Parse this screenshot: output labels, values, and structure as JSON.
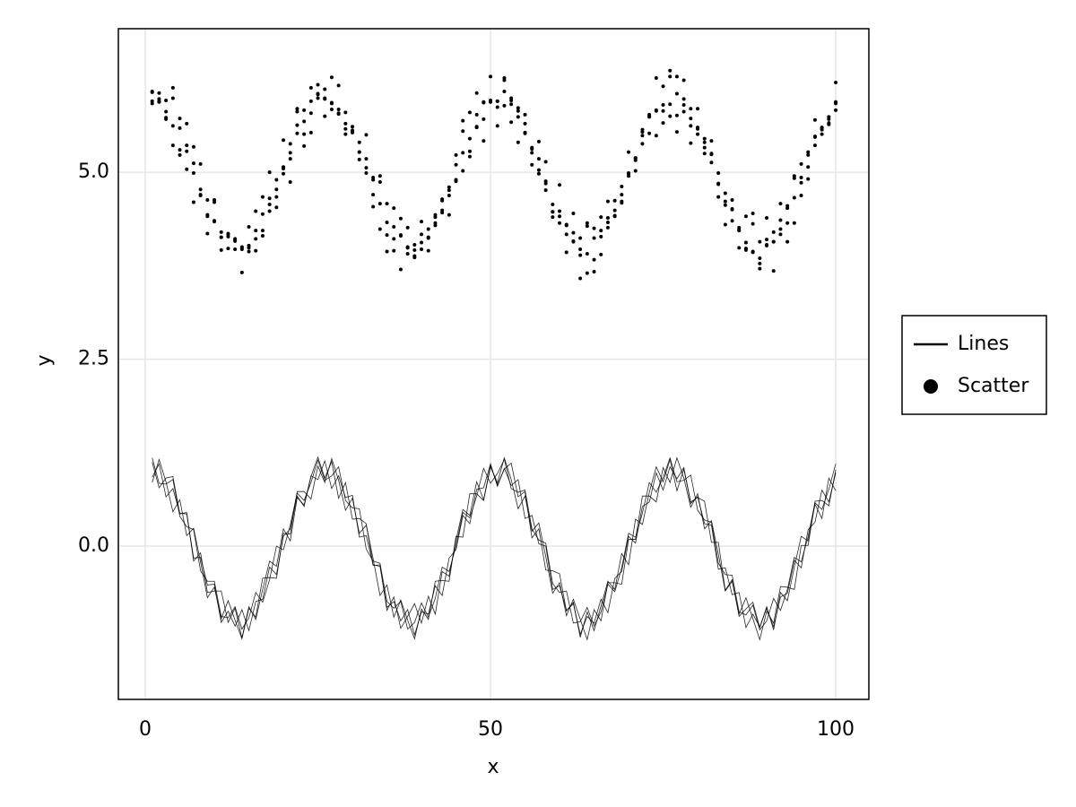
{
  "chart_data": {
    "type": "combo",
    "xlabel": "x",
    "ylabel": "y",
    "grid": true,
    "legend": "right",
    "xlim": [
      -3.9,
      104.8
    ],
    "ylim": [
      -2.05,
      6.92
    ],
    "xticks": [
      0,
      50,
      100
    ],
    "yticks": [
      {
        "value": 0,
        "label": "0.0"
      },
      {
        "value": 2.5,
        "label": "2.5"
      },
      {
        "value": 5,
        "label": "5.0"
      }
    ],
    "x": [
      1,
      2,
      3,
      4,
      5,
      6,
      7,
      8,
      9,
      10,
      11,
      12,
      13,
      14,
      15,
      16,
      17,
      18,
      19,
      20,
      21,
      22,
      23,
      24,
      25,
      26,
      27,
      28,
      29,
      30,
      31,
      32,
      33,
      34,
      35,
      36,
      37,
      38,
      39,
      40,
      41,
      42,
      43,
      44,
      45,
      46,
      47,
      48,
      49,
      50,
      51,
      52,
      53,
      54,
      55,
      56,
      57,
      58,
      59,
      60,
      61,
      62,
      63,
      64,
      65,
      66,
      67,
      68,
      69,
      70,
      71,
      72,
      73,
      74,
      75,
      76,
      77,
      78,
      79,
      80,
      81,
      82,
      83,
      84,
      85,
      86,
      87,
      88,
      89,
      90,
      91,
      92,
      93,
      94,
      95,
      96,
      97,
      98,
      99,
      100
    ],
    "series": [
      {
        "name": "Lines",
        "type": "line",
        "color": "#000000",
        "values": [
          [
            1.12,
            0.78,
            0.91,
            0.93,
            0.43,
            0.45,
            -0.2,
            -0.09,
            -0.62,
            -0.6,
            -0.6,
            -1.02,
            -0.83,
            -1.23,
            -0.81,
            -0.98,
            -0.58,
            -0.2,
            -0.27,
            0.23,
            0.07,
            0.65,
            0.55,
            0.93,
            1.19,
            0.91,
            1.13,
            0.64,
            0.85,
            0.36,
            0.37,
            0.3,
            -0.26,
            -0.25,
            -0.86,
            -0.68,
            -1.1,
            -0.94,
            -0.77,
            -1.03,
            -0.67,
            -0.91,
            -0.34,
            -0.4,
            0.08,
            0.49,
            0.41,
            0.86,
            0.62,
            1.08,
            0.82,
            1.03,
            1.11,
            0.66,
            0.73,
            0.11,
            0.23,
            -0.32,
            -0.33,
            -0.37,
            -0.87,
            -0.75,
            -1.22,
            -0.88,
            -1.13,
            -0.8,
            -0.47,
            -0.58,
            -0.1,
            -0.25,
            0.36,
            0.29,
            0.72,
            1.06,
            0.86,
            1.16,
            0.74,
            1.03,
            0.59,
            0.65,
            0.6,
            0.05,
            0.05,
            -0.59,
            -0.45,
            -0.94,
            -0.84,
            -0.75,
            -1.09,
            -0.81,
            -1.12,
            -0.62,
            -0.73,
            -0.28,
            0.13,
            0.07,
            0.56,
            0.37,
            0.91,
            0.74
          ],
          [
            0.85,
            1.16,
            0.86,
            0.46,
            0.62,
            0.14,
            0.24,
            -0.21,
            -0.69,
            -0.55,
            -0.97,
            -0.73,
            -0.99,
            -1.24,
            -0.83,
            -0.95,
            -0.43,
            -0.42,
            -0.43,
            0.17,
            0.16,
            0.73,
            0.73,
            0.63,
            1.07,
            0.85,
            1.17,
            0.88,
            0.48,
            0.64,
            0.17,
            0.28,
            -0.17,
            -0.66,
            -0.52,
            -0.95,
            -0.72,
            -0.99,
            -1.24,
            -0.84,
            -0.98,
            -0.47,
            -0.46,
            -0.47,
            0.13,
            0.12,
            0.7,
            0.7,
            0.61,
            1.06,
            0.85,
            1.18,
            0.89,
            0.5,
            0.67,
            0.2,
            0.31,
            -0.14,
            -0.63,
            -0.49,
            -0.93,
            -0.71,
            -0.98,
            -1.25,
            -0.85,
            -1.0,
            -0.49,
            -0.49,
            -0.51,
            0.09,
            0.09,
            0.67,
            0.67,
            0.59,
            1.05,
            0.85,
            1.18,
            0.91,
            0.52,
            0.7,
            0.23,
            0.34,
            -0.11,
            -0.6,
            -0.47,
            -0.91,
            -0.69,
            -0.97,
            -1.25,
            -0.87,
            -1.03,
            -0.54,
            -0.55,
            -0.58,
            0.01,
            0.01,
            0.6,
            0.61,
            0.54,
            1.02
          ],
          [
            1.18,
            0.84,
            0.83,
            0.89,
            0.4,
            0.26,
            0.22,
            -0.33,
            -0.47,
            -0.47,
            -0.94,
            -0.96,
            -0.81,
            -1.11,
            -0.96,
            -0.62,
            -0.75,
            -0.45,
            0,
            -0.05,
            0.28,
            0.71,
            0.61,
            0.85,
            1.15,
            0.88,
            0.94,
            1.06,
            0.61,
            0.51,
            0.5,
            -0.04,
            -0.2,
            -0.23,
            -0.74,
            -0.83,
            -0.74,
            -1.11,
            -1.02,
            -0.76,
            -0.95,
            -0.7,
            -0.28,
            -0.34,
            0,
            0.45,
            0.38,
            0.67,
            1.04,
            0.84,
            0.97,
            1.16,
            0.77,
            0.72,
            0.75,
            0.23,
            0.08,
            0.04,
            -0.5,
            -0.62,
            -0.6,
            -1.03,
            -1.01,
            -0.82,
            -1.07,
            -0.88,
            -0.51,
            -0.61,
            -0.29,
            0.17,
            0.12,
            0.44,
            0.85,
            0.72,
            0.92,
            1.18,
            0.86,
            0.88,
            0.95,
            0.48,
            0.35,
            0.32,
            -0.23,
            -0.38,
            -0.39,
            -0.88,
            -0.92,
            -0.79,
            -1.12,
            -1.0,
            -0.7,
            -0.86,
            -0.58,
            -0.15,
            -0.21,
            0.13,
            0.58,
            0.49,
            0.76,
            1.1
          ],
          [
            0.92,
            1.1,
            0.66,
            0.77,
            0.44,
            0.43,
            -0.16,
            -0.15,
            -0.52,
            -0.51,
            -1.02,
            -0.87,
            -1.07,
            -0.85,
            -1.13,
            -0.74,
            -0.71,
            -0.28,
            -0.38,
            0.13,
            0.23,
            0.67,
            0.53,
            0.94,
            0.89,
            1.14,
            0.77,
            0.94,
            0.65,
            0.68,
            0.12,
            0.14,
            -0.25,
            -0.27,
            -0.82,
            -0.74,
            -1.0,
            -0.85,
            -1.19,
            -0.88,
            -0.91,
            -0.53,
            -0.66,
            -0.16,
            -0.05,
            0.41,
            0.3,
            0.76,
            0.78,
            1.1,
            0.8,
            1.04,
            0.81,
            0.89,
            0.37,
            0.41,
            0.03,
            0,
            -0.58,
            -0.53,
            -0.86,
            -0.77,
            -1.18,
            -0.94,
            -1.03,
            -0.71,
            -0.89,
            -0.43,
            -0.34,
            0.13,
            0.04,
            0.53,
            0.59,
            0.98,
            0.75,
            1.06,
            0.9,
            1.05,
            0.57,
            0.66,
            0.3,
            0.28,
            -0.31,
            -0.29,
            -0.65,
            -0.62,
            -1.09,
            -0.91,
            -1.08,
            -0.83,
            -1.08,
            -0.68,
            -0.63,
            -0.19,
            -0.29,
            0.22,
            0.32,
            0.75,
            0.59,
            0.98
          ]
        ]
      },
      {
        "name": "Scatter",
        "type": "scatter",
        "color": "#000000",
        "values": [
          [
            5.95,
            6.06,
            5.96,
            5.36,
            5.72,
            5.04,
            5.34,
            4.69,
            4.41,
            4.35,
            4.13,
            4.17,
            4.11,
            3.66,
            4.27,
            3.95,
            4.67,
            4.48,
            4.67,
            5.07,
            5.26,
            5.63,
            5.83,
            5.53,
            6.17,
            5.75,
            6.27,
            5.78,
            5.58,
            5.54,
            5.27,
            5.18,
            4.93,
            4.24,
            4.58,
            3.95,
            4.38,
            3.91,
            3.86,
            4.06,
            4.12,
            4.43,
            4.64,
            4.43,
            5.23,
            5.02,
            5.8,
            5.6,
            5.71,
            5.96,
            5.95,
            6.08,
            5.99,
            5.4,
            5.77,
            5.1,
            5.41,
            4.76,
            4.47,
            4.41,
            4.17,
            4.19,
            4.12,
            3.65,
            4.25,
            3.9,
            4.61,
            4.41,
            4.59,
            4.99,
            5.19,
            5.57,
            5.77,
            5.49,
            6.15,
            5.75,
            6.28,
            5.81,
            5.62,
            5.6,
            5.33,
            5.24,
            4.99,
            4.3,
            4.63,
            3.99,
            4.41,
            3.93,
            3.85,
            4.03,
            4.07,
            4.36,
            4.55,
            4.32,
            5.11,
            4.91,
            5.7,
            5.51,
            5.64,
            5.92
          ],
          [
            6.08,
            5.94,
            5.73,
            5.99,
            5.3,
            5.36,
            5.12,
            4.77,
            4.43,
            4.63,
            3.96,
            4.14,
            4.09,
            3.99,
            3.94,
            4.48,
            4.15,
            4.65,
            4.9,
            5.05,
            5.18,
            5.81,
            5.51,
            5.95,
            6.05,
            5.98,
            5.84,
            6.16,
            5.51,
            5.61,
            5.4,
            5.06,
            4.7,
            4.87,
            4.16,
            4.27,
            4.16,
            3.99,
            3.88,
            4.34,
            3.95,
            4.4,
            4.62,
            4.76,
            4.9,
            5.55,
            5.28,
            5.77,
            5.94,
            5.94,
            5.87,
            6.26,
            5.67,
            5.82,
            5.65,
            5.33,
            4.98,
            5.14,
            4.4,
            4.48,
            4.3,
            4.07,
            3.89,
            4.28,
            3.83,
            4.22,
            4.39,
            4.49,
            4.61,
            5.27,
            5.02,
            5.54,
            5.75,
            5.82,
            5.82,
            6.28,
            5.76,
            5.98,
            5.85,
            5.58,
            5.25,
            5.42,
            4.67,
            4.72,
            4.51,
            4.22,
            3.98,
            4.31,
            3.78,
            4.1,
            4.2,
            4.24,
            4.32,
            4.95,
            4.69,
            5.23,
            5.48,
            5.59,
            5.66,
            6.2
          ],
          [
            6.07,
            5.95,
            5.81,
            5.62,
            5.59,
            5.28,
            4.99,
            4.7,
            4.63,
            4.34,
            4.13,
            3.98,
            4.08,
            4.0,
            4.02,
            4.11,
            4.44,
            4.57,
            4.77,
            4.98,
            5.38,
            5.52,
            5.68,
            5.79,
            6.04,
            5.99,
            5.92,
            5.79,
            5.8,
            5.53,
            5.27,
            4.99,
            4.9,
            4.58,
            4.33,
            4.11,
            4.15,
            4.0,
            3.96,
            3.97,
            4.24,
            4.32,
            4.49,
            4.69,
            5.1,
            5.26,
            5.45,
            5.61,
            5.93,
            5.95,
            5.95,
            5.89,
            5.96,
            5.74,
            5.52,
            5.26,
            5.18,
            4.85,
            4.57,
            4.32,
            4.29,
            4.08,
            3.97,
            3.91,
            4.12,
            4.14,
            4.26,
            4.42,
            4.81,
            4.98,
            5.19,
            5.38,
            5.74,
            5.83,
            5.9,
            5.91,
            6.05,
            5.9,
            5.72,
            5.51,
            5.45,
            5.13,
            4.84,
            4.56,
            4.5,
            4.23,
            4.06,
            3.94,
            4.07,
            4.02,
            4.07,
            4.17,
            4.52,
            4.66,
            4.86,
            5.07,
            5.47,
            5.6,
            5.74,
            5.83
          ],
          [
            5.92,
            5.98,
            5.71,
            6.13,
            5.23,
            5.65,
            4.6,
            5.11,
            4.18,
            4.6,
            4.2,
            4.18,
            3.97,
            3.97,
            3.99,
            4.22,
            4.22,
            5.0,
            4.53,
            5.43,
            4.87,
            5.85,
            5.35,
            6.13,
            5.99,
            6.11,
            5.93,
            5.84,
            5.65,
            5.56,
            5.17,
            5.5,
            4.54,
            4.95,
            3.94,
            4.52,
            3.7,
            4.26,
            4.03,
            4.17,
            4.13,
            4.29,
            4.46,
            4.8,
            4.88,
            5.69,
            5.21,
            6.06,
            5.42,
            6.28,
            5.62,
            6.23,
            5.91,
            5.86,
            5.53,
            5.31,
            5.03,
            4.88,
            4.47,
            4.83,
            3.93,
            4.45,
            3.58,
            4.32,
            3.67,
            4.4,
            4.33,
            4.62,
            4.7,
            4.95,
            5.16,
            5.49,
            5.52,
            6.26,
            5.66,
            6.36,
            5.54,
            6.23,
            5.39,
            5.85,
            5.4,
            5.25,
            4.85,
            4.61,
            4.35,
            4.26,
            3.96,
            4.45,
            3.71,
            4.39,
            3.68,
            4.58,
            4.07,
            4.92,
            4.93,
            5.27,
            5.36,
            5.57,
            5.71,
            5.94
          ]
        ]
      }
    ]
  }
}
